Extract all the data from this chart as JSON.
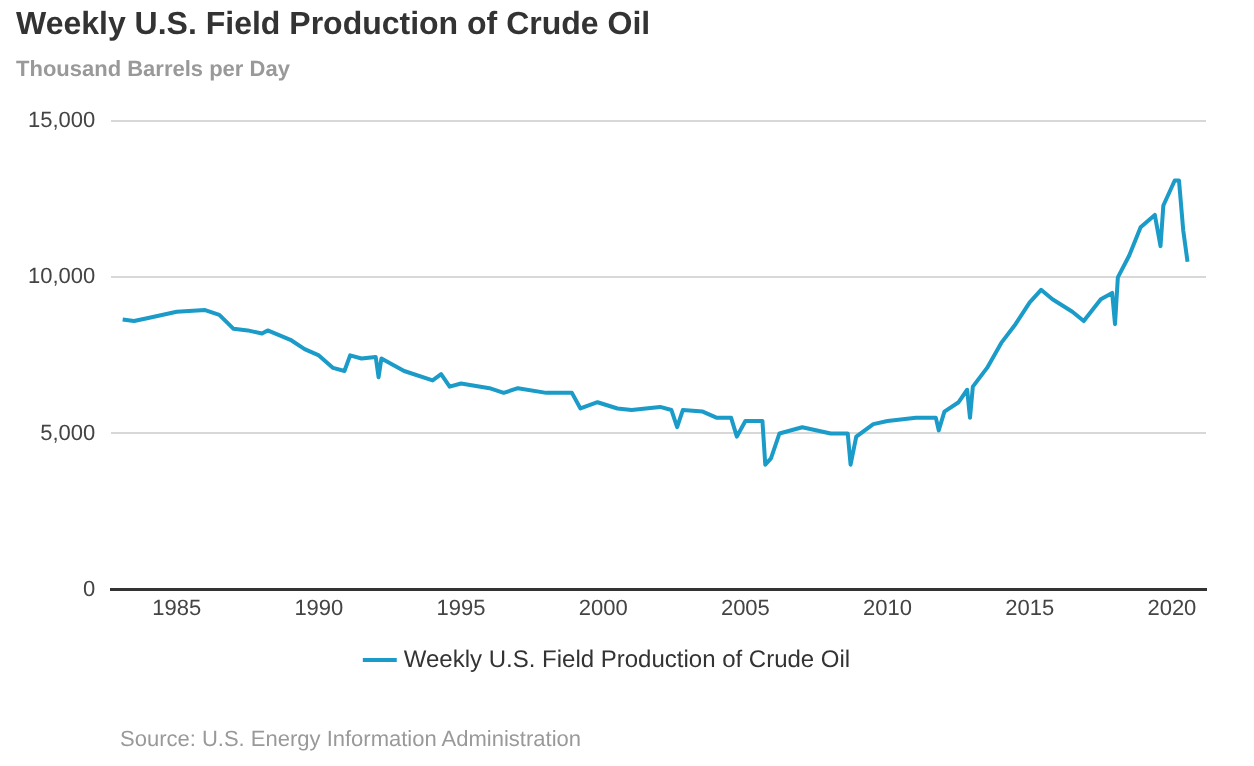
{
  "chart_data": {
    "type": "line",
    "title": "Weekly U.S. Field Production of Crude Oil",
    "ylabel": "Thousand Barrels per Day",
    "x": [
      1983.1,
      1983.5,
      1984,
      1985,
      1986,
      1986.5,
      1987,
      1987.5,
      1988,
      1988.2,
      1989,
      1989.5,
      1990,
      1990.5,
      1990.9,
      1991.1,
      1991.5,
      1992,
      1992.1,
      1992.2,
      1993,
      1994,
      1994.3,
      1994.6,
      1995,
      1996,
      1996.5,
      1997,
      1998,
      1998.9,
      1999.2,
      1999.8,
      2000.5,
      2001,
      2002,
      2002.4,
      2002.6,
      2002.8,
      2003.5,
      2004,
      2004.5,
      2004.7,
      2005,
      2005.6,
      2005.7,
      2005.9,
      2006.2,
      2007,
      2008,
      2008.6,
      2008.7,
      2008.9,
      2009.5,
      2010,
      2011,
      2011.7,
      2011.8,
      2012,
      2012.5,
      2012.8,
      2012.9,
      2013,
      2013.5,
      2014,
      2014.5,
      2015,
      2015.4,
      2015.8,
      2016.5,
      2016.9,
      2017.5,
      2017.9,
      2018,
      2018.1,
      2018.5,
      2018.9,
      2019.4,
      2019.6,
      2019.7,
      2020.1,
      2020.25,
      2020.4,
      2020.55
    ],
    "series": [
      {
        "name": "Weekly U.S. Field Production of Crude Oil",
        "color": "#1b9bc8",
        "values": [
          8650,
          8600,
          8700,
          8900,
          8950,
          8800,
          8350,
          8300,
          8200,
          8300,
          8000,
          7700,
          7500,
          7100,
          7000,
          7500,
          7400,
          7450,
          6800,
          7400,
          7000,
          6700,
          6900,
          6500,
          6600,
          6450,
          6300,
          6450,
          6300,
          6300,
          5800,
          6000,
          5800,
          5750,
          5850,
          5750,
          5200,
          5750,
          5700,
          5500,
          5500,
          4900,
          5400,
          5400,
          4000,
          4200,
          5000,
          5200,
          5000,
          5000,
          4000,
          4900,
          5300,
          5400,
          5500,
          5500,
          5100,
          5700,
          6000,
          6400,
          5500,
          6500,
          7100,
          7900,
          8500,
          9200,
          9600,
          9300,
          8900,
          8600,
          9300,
          9500,
          8500,
          10000,
          10700,
          11600,
          12000,
          11000,
          12300,
          13100,
          13100,
          11500,
          10500
        ]
      }
    ],
    "xlim": [
      1982.7,
      2021.2
    ],
    "xticks": [
      1985,
      1990,
      1995,
      2000,
      2005,
      2010,
      2015,
      2020
    ],
    "ylim": [
      0,
      15000
    ],
    "yticks": [
      0,
      {
        "value": 5000,
        "label": "5,000"
      },
      {
        "value": 10000,
        "label": "10,000"
      },
      {
        "value": 15000,
        "label": "15,000"
      }
    ],
    "grid": "y",
    "legend": "bottom",
    "marker": "none",
    "line_style": "solid",
    "annotations": [
      "Source: U.S. Energy Information Administration"
    ]
  }
}
